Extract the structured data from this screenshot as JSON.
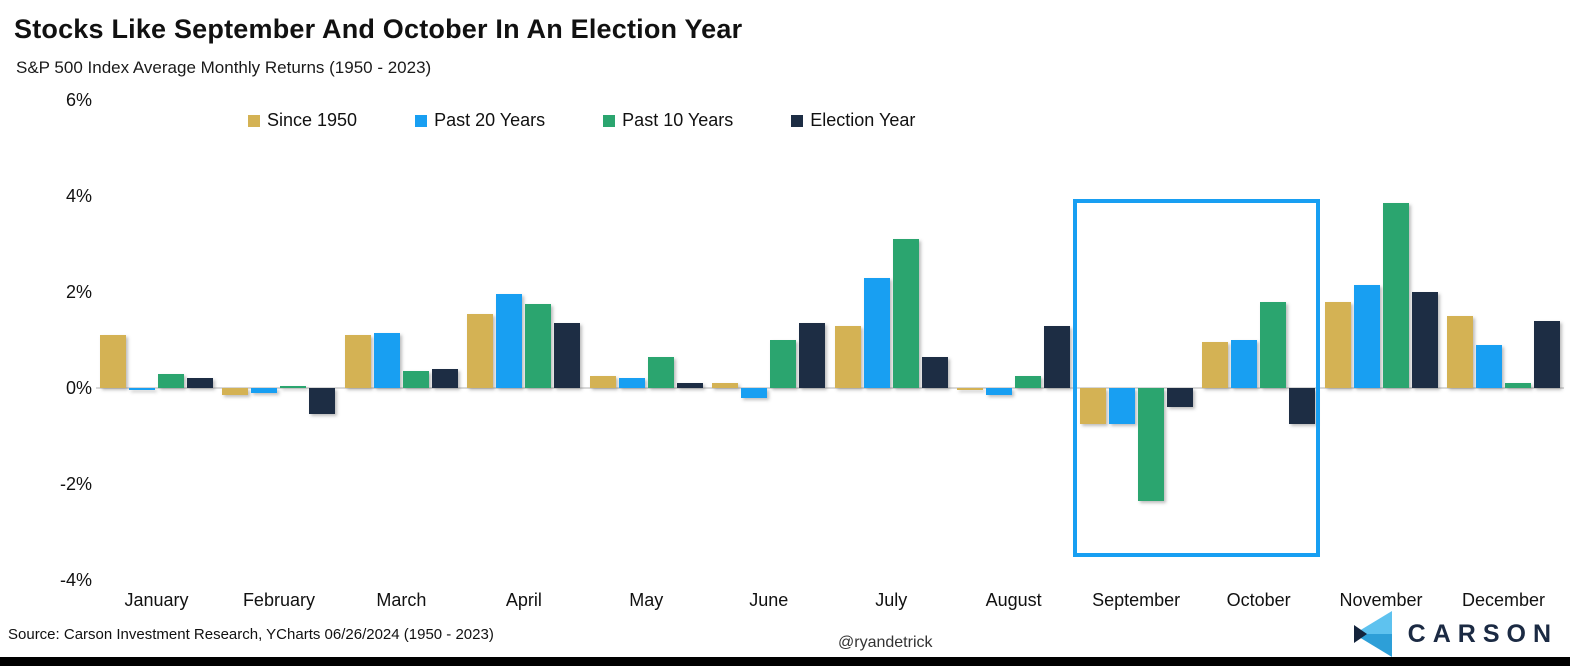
{
  "title": "Stocks Like September And October In An Election Year",
  "subtitle": "S&P 500 Index Average Monthly Returns (1950 - 2023)",
  "y_axis": {
    "ticks": [
      "6%",
      "4%",
      "2%",
      "0%",
      "-2%",
      "-4%"
    ],
    "tick_values": [
      6,
      4,
      2,
      0,
      -2,
      -4
    ]
  },
  "chart_data": {
    "type": "bar",
    "title": "Stocks Like September And October In An Election Year",
    "subtitle": "S&P 500 Index Average Monthly Returns (1950 - 2023)",
    "categories": [
      "January",
      "February",
      "March",
      "April",
      "May",
      "June",
      "July",
      "August",
      "September",
      "October",
      "November",
      "December"
    ],
    "series": [
      {
        "name": "Since 1950",
        "color": "#d4b254",
        "values": [
          1.1,
          -0.15,
          1.1,
          1.55,
          0.25,
          0.1,
          1.3,
          -0.05,
          -0.75,
          0.95,
          1.8,
          1.5
        ]
      },
      {
        "name": "Past 20 Years",
        "color": "#189ff2",
        "values": [
          -0.05,
          -0.1,
          1.15,
          1.95,
          0.2,
          -0.2,
          2.3,
          -0.15,
          -0.75,
          1.0,
          2.15,
          0.9
        ]
      },
      {
        "name": "Past 10 Years",
        "color": "#2ba56f",
        "values": [
          0.3,
          0.05,
          0.35,
          1.75,
          0.65,
          1.0,
          3.1,
          0.25,
          -2.35,
          1.8,
          3.85,
          0.1
        ]
      },
      {
        "name": "Election Year",
        "color": "#1d2d44",
        "values": [
          0.2,
          -0.55,
          0.4,
          1.35,
          0.1,
          1.35,
          0.65,
          1.3,
          -0.4,
          -0.75,
          2.0,
          1.4
        ]
      }
    ],
    "xlabel": "",
    "ylabel": "",
    "ylim": [
      -4,
      6
    ],
    "grid": "zero-line-only",
    "legend_position": "top",
    "annotation": {
      "highlight_months": [
        "September",
        "October"
      ],
      "highlight_color": "#189ff2"
    }
  },
  "footer": {
    "source": "Source: Carson Investment Research, YCharts 06/26/2024 (1950 - 2023)",
    "handle": "@ryandetrick",
    "brand": "CARSON"
  },
  "brand_colors": {
    "light_blue": "#5ec2ef",
    "mid_blue": "#2d9fd8",
    "navy": "#14243c"
  }
}
